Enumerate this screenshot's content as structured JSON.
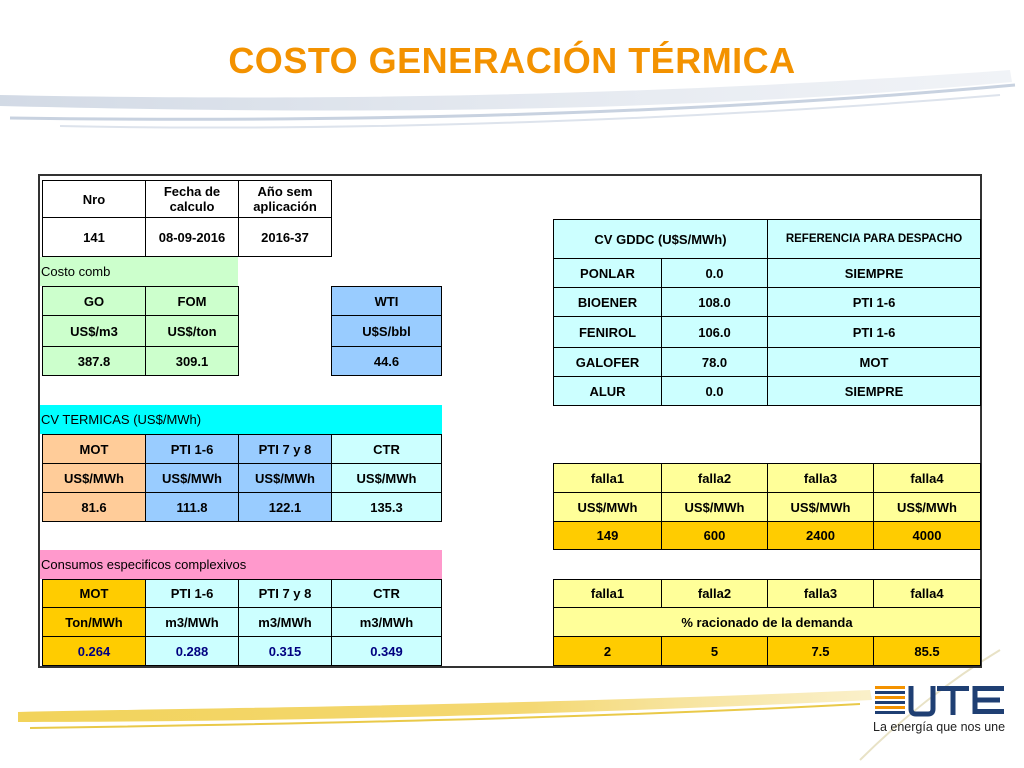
{
  "title": "COSTO GENERACIÓN TÉRMICA",
  "logo": {
    "text": "UTE",
    "tagline": "La energía que nos une"
  },
  "header": {
    "nro_label": "Nro",
    "fecha_label": "Fecha de calculo",
    "anio_label": "Año sem aplicación",
    "nro": "141",
    "fecha": "08-09-2016",
    "anio": "2016-37"
  },
  "costo_comb": {
    "label": "Costo comb",
    "go": {
      "name": "GO",
      "unit": "US$/m3",
      "value": "387.8"
    },
    "fom": {
      "name": "FOM",
      "unit": "US$/ton",
      "value": "309.1"
    },
    "wti": {
      "name": "WTI",
      "unit": "U$S/bbl",
      "value": "44.6"
    }
  },
  "gddc": {
    "header_cv": "CV GDDC (U$S/MWh)",
    "header_ref": "REFERENCIA PARA DESPACHO",
    "rows": [
      {
        "name": "PONLAR",
        "value": "0.0",
        "ref": "SIEMPRE"
      },
      {
        "name": "BIOENER",
        "value": "108.0",
        "ref": "PTI 1-6"
      },
      {
        "name": "FENIROL",
        "value": "106.0",
        "ref": "PTI 1-6"
      },
      {
        "name": "GALOFER",
        "value": "78.0",
        "ref": "MOT"
      },
      {
        "name": "ALUR",
        "value": "0.0",
        "ref": "SIEMPRE"
      }
    ]
  },
  "cv_termicas": {
    "label": "CV TERMICAS (US$/MWh)",
    "cols": [
      "MOT",
      "PTI 1-6",
      "PTI 7 y 8",
      "CTR"
    ],
    "units": [
      "US$/MWh",
      "US$/MWh",
      "US$/MWh",
      "US$/MWh"
    ],
    "values": [
      "81.6",
      "111.8",
      "122.1",
      "135.3"
    ]
  },
  "falla_costos": {
    "cols": [
      "falla1",
      "falla2",
      "falla3",
      "falla4"
    ],
    "units": [
      "US$/MWh",
      "US$/MWh",
      "US$/MWh",
      "US$/MWh"
    ],
    "values": [
      "149",
      "600",
      "2400",
      "4000"
    ]
  },
  "consumos": {
    "label": "Consumos especificos complexivos",
    "cols": [
      "MOT",
      "PTI 1-6",
      "PTI 7 y 8",
      "CTR"
    ],
    "units": [
      "Ton/MWh",
      "m3/MWh",
      "m3/MWh",
      "m3/MWh"
    ],
    "values": [
      "0.264",
      "0.288",
      "0.315",
      "0.349"
    ]
  },
  "falla_racionado": {
    "cols": [
      "falla1",
      "falla2",
      "falla3",
      "falla4"
    ],
    "label": "% racionado de la demanda",
    "values": [
      "2",
      "5",
      "7.5",
      "85.5"
    ]
  },
  "colors": {
    "title": "#f39200",
    "light_green": "#ccffcc",
    "light_blue": "#99ccff",
    "light_cyan": "#ccffff",
    "peach": "#ffcc99",
    "gold": "#ffcc00",
    "light_yellow": "#ffff99",
    "aqua": "#00ffff",
    "pink": "#ff99cc"
  }
}
